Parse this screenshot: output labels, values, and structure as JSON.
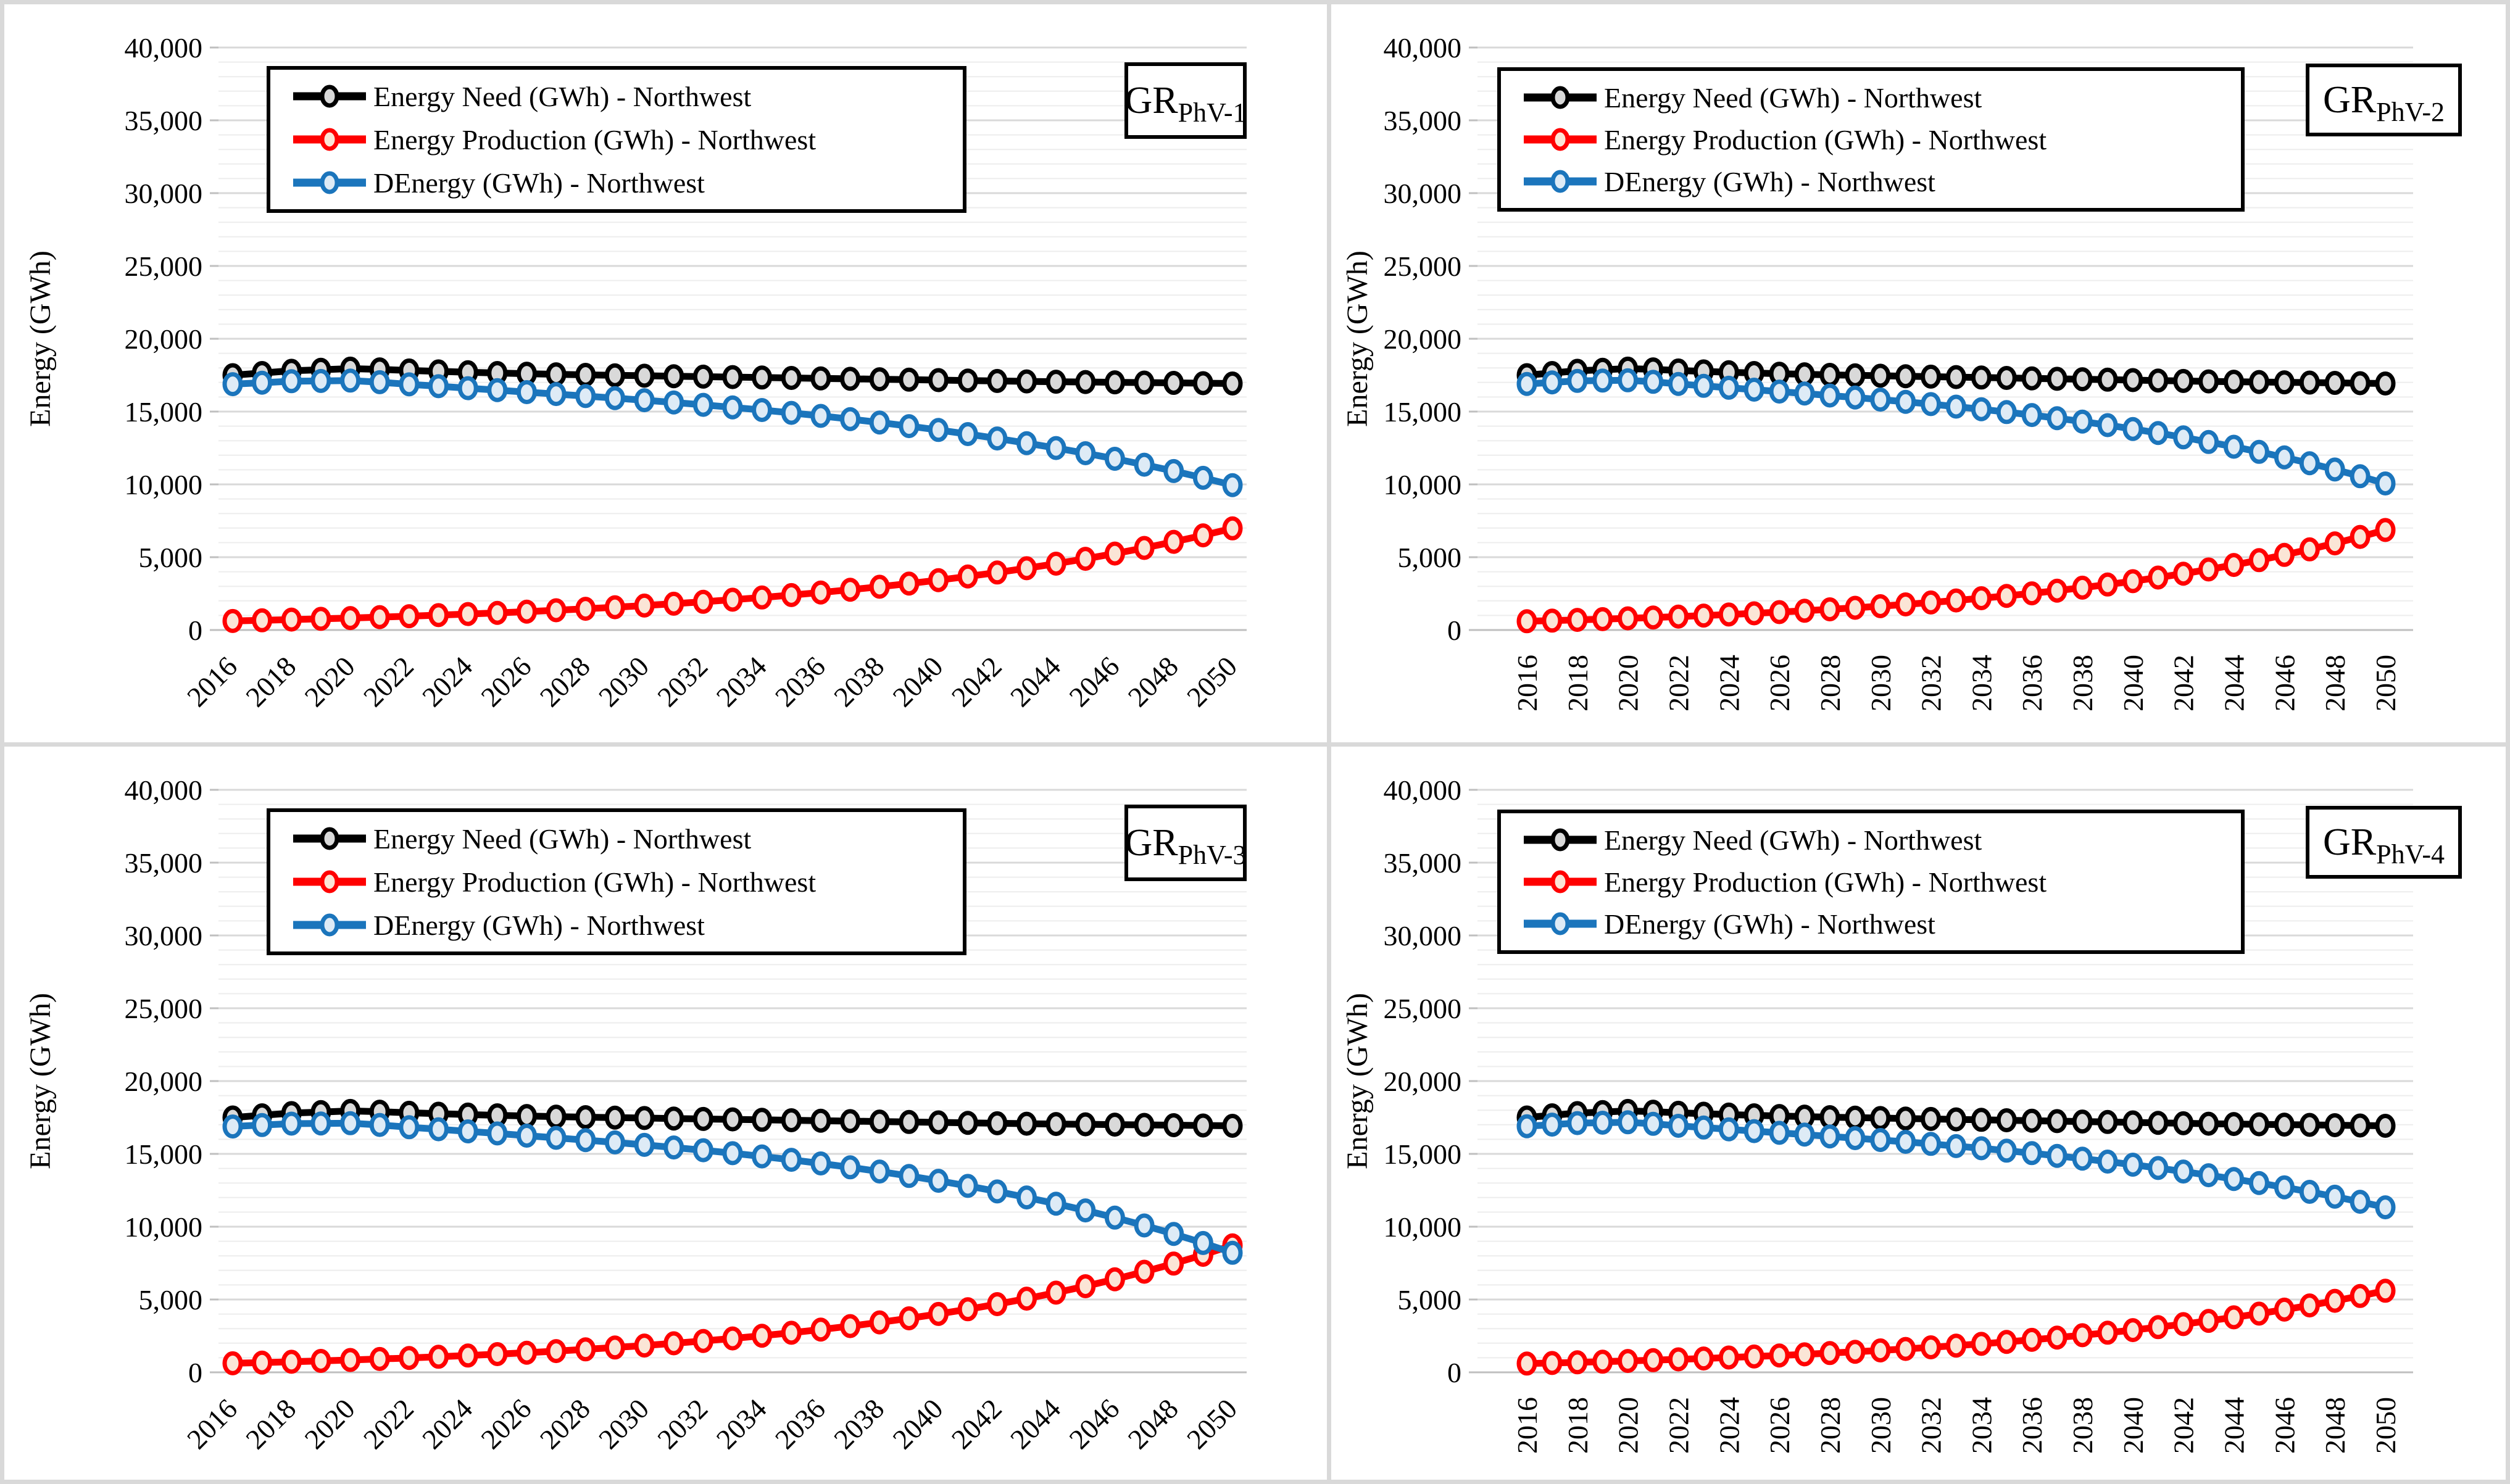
{
  "figure": {
    "border_color": "#D9D9D9",
    "background": "#ffffff",
    "grid_minor_color": "#EDEDED",
    "grid_major_color": "#D9D9D9",
    "axis_line_color": "#BFBFBF",
    "legend": {
      "border_color": "#000000",
      "entries": [
        {
          "label": "Energy Need (GWh) -  Northwest",
          "color": "#000000",
          "marker_fill": "#D9D9D9"
        },
        {
          "label": "Energy Production (GWh) -  Northwest",
          "color": "#FF0000",
          "marker_fill": "#FBE5D6"
        },
        {
          "label": "DEnergy  (GWh) -  Northwest",
          "color": "#1B75BC",
          "marker_fill": "#DEEBF6"
        }
      ]
    },
    "y_axis": {
      "title": "Energy (GWh)",
      "min": 0,
      "max": 40000,
      "major_step": 5000,
      "minor_step": 1000,
      "tick_labels": [
        "0",
        "5,000",
        "10,000",
        "15,000",
        "20,000",
        "25,000",
        "30,000",
        "35,000",
        "40,000"
      ]
    },
    "x_axis": {
      "start": 2016,
      "end": 2050,
      "label_step": 2,
      "tick_labels": [
        "2016",
        "2018",
        "2020",
        "2022",
        "2024",
        "2026",
        "2028",
        "2030",
        "2032",
        "2034",
        "2036",
        "2038",
        "2040",
        "2042",
        "2044",
        "2046",
        "2048",
        "2050"
      ]
    }
  },
  "chart_data": [
    {
      "type": "line",
      "panel_label_main": "GR",
      "panel_label_sub": "PhV-1",
      "x_label_rotation": -45,
      "x": [
        2016,
        2017,
        2018,
        2019,
        2020,
        2021,
        2022,
        2023,
        2024,
        2025,
        2026,
        2027,
        2028,
        2029,
        2030,
        2031,
        2032,
        2033,
        2034,
        2035,
        2036,
        2037,
        2038,
        2039,
        2040,
        2041,
        2042,
        2043,
        2044,
        2045,
        2046,
        2047,
        2048,
        2049,
        2050
      ],
      "xlabel": "",
      "ylabel": "Energy (GWh)",
      "ylim": [
        0,
        40000
      ],
      "grid": true,
      "legend_position": "top-left",
      "series": [
        {
          "name": "Energy Need (GWh) -  Northwest",
          "color": "#000000",
          "marker_fill": "#D9D9D9",
          "values": [
            17500,
            17650,
            17800,
            17870,
            17950,
            17900,
            17820,
            17760,
            17700,
            17650,
            17600,
            17560,
            17520,
            17490,
            17460,
            17430,
            17400,
            17370,
            17340,
            17310,
            17280,
            17250,
            17220,
            17190,
            17160,
            17130,
            17100,
            17070,
            17050,
            17030,
            17010,
            16990,
            16970,
            16950,
            16930
          ]
        },
        {
          "name": "Energy Production (GWh) -  Northwest",
          "color": "#FF0000",
          "marker_fill": "#FBE5D6",
          "values": [
            620,
            666,
            715,
            768,
            824,
            885,
            950,
            1020,
            1096,
            1177,
            1264,
            1357,
            1457,
            1565,
            1680,
            1804,
            1937,
            2080,
            2234,
            2399,
            2576,
            2766,
            2970,
            3189,
            3424,
            3677,
            3948,
            4240,
            4553,
            4889,
            5250,
            5637,
            6053,
            6500,
            6980
          ]
        },
        {
          "name": "DEnergy  (GWh) -  Northwest",
          "color": "#1B75BC",
          "marker_fill": "#DEEBF6",
          "values": [
            16880,
            16984,
            17085,
            17102,
            17126,
            17015,
            16870,
            16740,
            16604,
            16473,
            16336,
            16203,
            16063,
            15925,
            15780,
            15626,
            15463,
            15290,
            15106,
            14911,
            14704,
            14484,
            14250,
            14001,
            13736,
            13453,
            13152,
            12830,
            12497,
            12141,
            11760,
            11353,
            10917,
            10450,
            9950
          ]
        }
      ]
    },
    {
      "type": "line",
      "panel_label_main": "GR",
      "panel_label_sub": "PhV-2",
      "x_label_rotation": -90,
      "x": [
        2016,
        2017,
        2018,
        2019,
        2020,
        2021,
        2022,
        2023,
        2024,
        2025,
        2026,
        2027,
        2028,
        2029,
        2030,
        2031,
        2032,
        2033,
        2034,
        2035,
        2036,
        2037,
        2038,
        2039,
        2040,
        2041,
        2042,
        2043,
        2044,
        2045,
        2046,
        2047,
        2048,
        2049,
        2050
      ],
      "xlabel": "",
      "ylabel": "Energy (GWh)",
      "ylim": [
        0,
        40000
      ],
      "grid": true,
      "legend_position": "top-left",
      "series": [
        {
          "name": "Energy Need (GWh) -  Northwest",
          "color": "#000000",
          "marker_fill": "#D9D9D9",
          "values": [
            17500,
            17650,
            17800,
            17870,
            17950,
            17900,
            17820,
            17760,
            17700,
            17650,
            17600,
            17560,
            17520,
            17490,
            17460,
            17430,
            17400,
            17370,
            17340,
            17310,
            17280,
            17250,
            17220,
            17190,
            17160,
            17130,
            17100,
            17070,
            17050,
            17030,
            17010,
            16990,
            16970,
            16950,
            16930
          ]
        },
        {
          "name": "Energy Production (GWh) -  Northwest",
          "color": "#FF0000",
          "marker_fill": "#FBE5D6",
          "values": [
            600,
            645,
            693,
            744,
            800,
            859,
            923,
            991,
            1065,
            1144,
            1229,
            1320,
            1418,
            1524,
            1637,
            1759,
            1889,
            2030,
            2181,
            2343,
            2517,
            2704,
            2905,
            3121,
            3353,
            3602,
            3870,
            4157,
            4466,
            4798,
            5155,
            5538,
            5949,
            6392,
            6867
          ]
        },
        {
          "name": "DEnergy  (GWh) -  Northwest",
          "color": "#1B75BC",
          "marker_fill": "#DEEBF6",
          "values": [
            16900,
            17005,
            17107,
            17126,
            17150,
            17041,
            16897,
            16769,
            16635,
            16506,
            16371,
            16240,
            16102,
            15966,
            15823,
            15671,
            15511,
            15340,
            15159,
            14967,
            14763,
            14546,
            14315,
            14069,
            13807,
            13528,
            13230,
            12913,
            12584,
            12232,
            11855,
            11452,
            11021,
            10558,
            10063
          ]
        }
      ]
    },
    {
      "type": "line",
      "panel_label_main": "GR",
      "panel_label_sub": "PhV-3",
      "x_label_rotation": -45,
      "x": [
        2016,
        2017,
        2018,
        2019,
        2020,
        2021,
        2022,
        2023,
        2024,
        2025,
        2026,
        2027,
        2028,
        2029,
        2030,
        2031,
        2032,
        2033,
        2034,
        2035,
        2036,
        2037,
        2038,
        2039,
        2040,
        2041,
        2042,
        2043,
        2044,
        2045,
        2046,
        2047,
        2048,
        2049,
        2050
      ],
      "xlabel": "",
      "ylabel": "Energy (GWh)",
      "ylim": [
        0,
        40000
      ],
      "grid": true,
      "legend_position": "top-left",
      "series": [
        {
          "name": "Energy Need (GWh) -  Northwest",
          "color": "#000000",
          "marker_fill": "#D9D9D9",
          "values": [
            17500,
            17650,
            17800,
            17870,
            17950,
            17900,
            17820,
            17760,
            17700,
            17650,
            17600,
            17560,
            17520,
            17490,
            17460,
            17430,
            17400,
            17370,
            17340,
            17310,
            17280,
            17250,
            17220,
            17190,
            17160,
            17130,
            17100,
            17070,
            17050,
            17030,
            17010,
            16990,
            16970,
            16950,
            16930
          ]
        },
        {
          "name": "Energy Production (GWh) -  Northwest",
          "color": "#FF0000",
          "marker_fill": "#FBE5D6",
          "values": [
            620,
            670,
            724,
            783,
            846,
            914,
            988,
            1068,
            1154,
            1248,
            1349,
            1458,
            1576,
            1703,
            1841,
            1990,
            2151,
            2325,
            2513,
            2716,
            2936,
            3173,
            3430,
            3707,
            4007,
            4331,
            4681,
            5060,
            5469,
            5911,
            6389,
            6906,
            7465,
            8069,
            8722
          ]
        },
        {
          "name": "DEnergy  (GWh) -  Northwest",
          "color": "#1B75BC",
          "marker_fill": "#DEEBF6",
          "values": [
            16880,
            16980,
            17076,
            17087,
            17104,
            16986,
            16832,
            16692,
            16546,
            16402,
            16251,
            16102,
            15944,
            15787,
            15619,
            15440,
            15249,
            15045,
            14827,
            14594,
            14344,
            14077,
            13790,
            13483,
            13153,
            12799,
            12419,
            12010,
            11581,
            11119,
            10621,
            10084,
            9505,
            8881,
            8208
          ]
        }
      ]
    },
    {
      "type": "line",
      "panel_label_main": "GR",
      "panel_label_sub": "PhV-4",
      "x_label_rotation": -90,
      "x": [
        2016,
        2017,
        2018,
        2019,
        2020,
        2021,
        2022,
        2023,
        2024,
        2025,
        2026,
        2027,
        2028,
        2029,
        2030,
        2031,
        2032,
        2033,
        2034,
        2035,
        2036,
        2037,
        2038,
        2039,
        2040,
        2041,
        2042,
        2043,
        2044,
        2045,
        2046,
        2047,
        2048,
        2049,
        2050
      ],
      "xlabel": "",
      "ylabel": "Energy (GWh)",
      "ylim": [
        0,
        40000
      ],
      "grid": true,
      "legend_position": "top-left",
      "series": [
        {
          "name": "Energy Need (GWh) -  Northwest",
          "color": "#000000",
          "marker_fill": "#D9D9D9",
          "values": [
            17500,
            17650,
            17800,
            17870,
            17950,
            17900,
            17820,
            17760,
            17700,
            17650,
            17600,
            17560,
            17520,
            17490,
            17460,
            17430,
            17400,
            17370,
            17340,
            17310,
            17280,
            17250,
            17220,
            17190,
            17160,
            17130,
            17100,
            17070,
            17050,
            17030,
            17010,
            16990,
            16970,
            16950,
            16930
          ]
        },
        {
          "name": "Energy Production (GWh) -  Northwest",
          "color": "#FF0000",
          "marker_fill": "#FBE5D6",
          "values": [
            600,
            640,
            685,
            730,
            780,
            835,
            890,
            950,
            1015,
            1085,
            1155,
            1235,
            1320,
            1410,
            1505,
            1605,
            1715,
            1835,
            1955,
            2090,
            2230,
            2385,
            2545,
            2720,
            2900,
            3100,
            3310,
            3535,
            3775,
            4030,
            4305,
            4595,
            4910,
            5240,
            5600
          ]
        },
        {
          "name": "DEnergy  (GWh) -  Northwest",
          "color": "#1B75BC",
          "marker_fill": "#DEEBF6",
          "values": [
            16900,
            17010,
            17115,
            17140,
            17170,
            17065,
            16930,
            16810,
            16685,
            16565,
            16445,
            16325,
            16200,
            16080,
            15955,
            15825,
            15685,
            15535,
            15385,
            15220,
            15050,
            14865,
            14675,
            14470,
            14260,
            14030,
            13790,
            13535,
            13275,
            13000,
            12705,
            12395,
            12060,
            11710,
            11330
          ]
        }
      ]
    }
  ]
}
